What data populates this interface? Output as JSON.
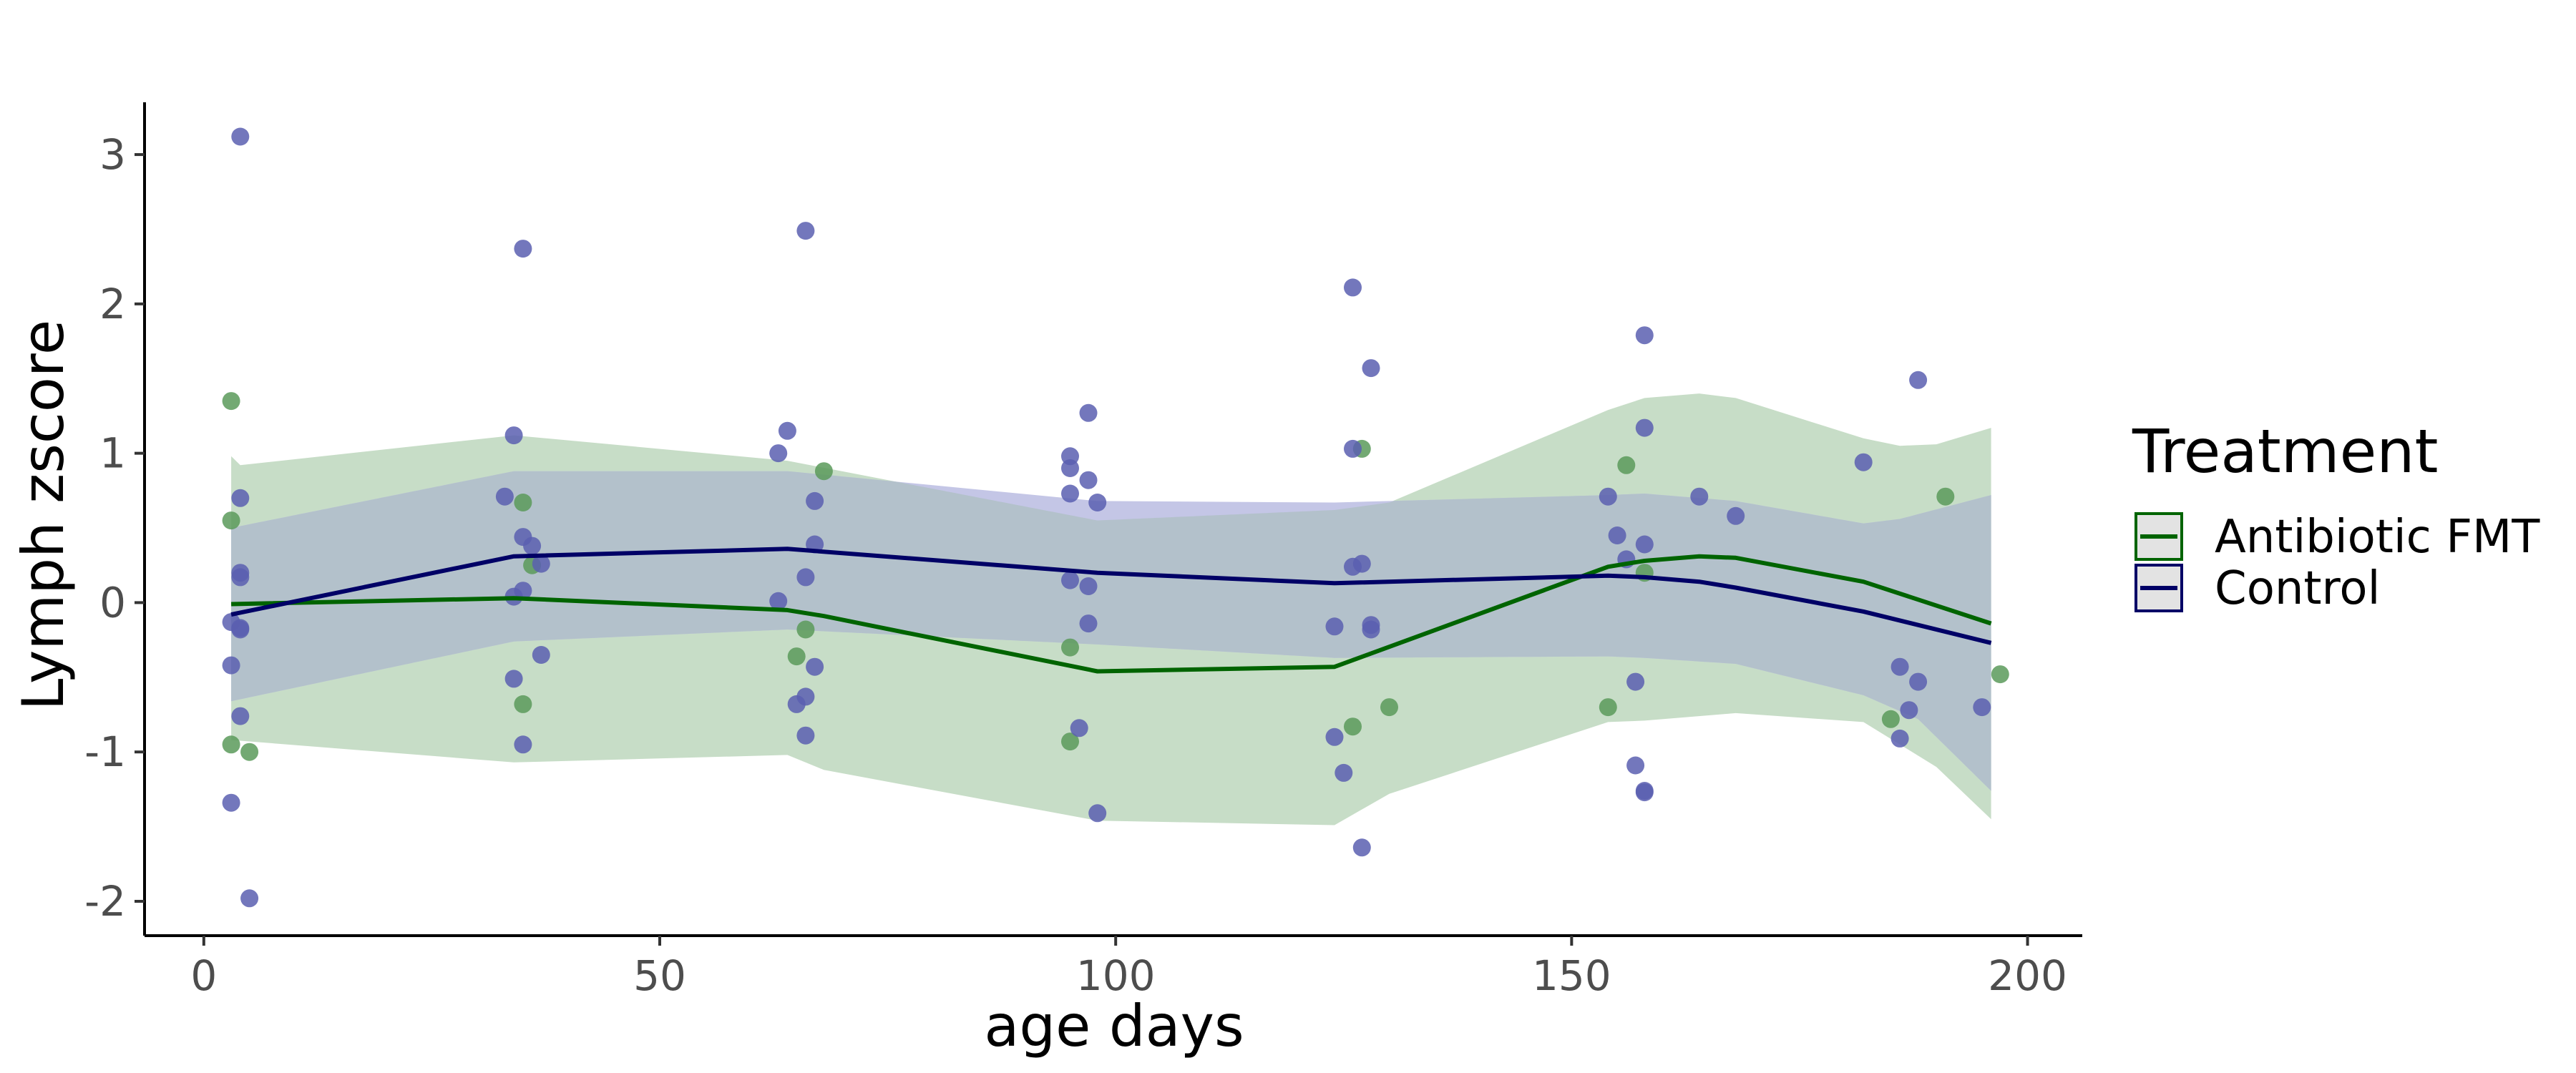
{
  "chart_data": {
    "type": "scatter",
    "title": "",
    "xlabel": "age days",
    "ylabel": "Lymph zscore",
    "xlim": [
      -6.5,
      206
    ],
    "ylim": [
      -2.23,
      3.35
    ],
    "x_ticks": [
      0,
      50,
      100,
      150,
      200
    ],
    "x_tick_labels": [
      "0",
      "50",
      "100",
      "150",
      "200"
    ],
    "y_ticks": [
      -2,
      -1,
      0,
      1,
      2,
      3
    ],
    "y_tick_labels": [
      "-2",
      "-1",
      "0",
      "1",
      "2",
      "3"
    ],
    "grid": false,
    "legend": {
      "title": "Treatment",
      "placement": "right",
      "entries": [
        "Antibiotic FMT",
        "Control"
      ]
    },
    "series": [
      {
        "name": "Antibiotic FMT",
        "color": "#006400",
        "point_color": "#5a9a5a",
        "points": [
          [
            3,
            1.35
          ],
          [
            3,
            0.55
          ],
          [
            3,
            -0.95
          ],
          [
            5,
            -1.0
          ],
          [
            35,
            0.67
          ],
          [
            36,
            0.25
          ],
          [
            35,
            -0.68
          ],
          [
            65,
            -0.36
          ],
          [
            66,
            -0.18
          ],
          [
            68,
            0.88
          ],
          [
            95,
            -0.3
          ],
          [
            95,
            -0.93
          ],
          [
            127,
            1.03
          ],
          [
            126,
            -0.83
          ],
          [
            130,
            -0.7
          ],
          [
            154,
            -0.7
          ],
          [
            156,
            0.92
          ],
          [
            158,
            0.2
          ],
          [
            185,
            -0.78
          ],
          [
            191,
            0.71
          ],
          [
            197,
            -0.48
          ]
        ],
        "line": [
          [
            3,
            -0.01
          ],
          [
            34,
            0.03
          ],
          [
            64,
            -0.05
          ],
          [
            68,
            -0.09
          ],
          [
            98,
            -0.46
          ],
          [
            124,
            -0.43
          ],
          [
            154,
            0.24
          ],
          [
            158,
            0.28
          ],
          [
            164,
            0.31
          ],
          [
            168,
            0.3
          ],
          [
            182,
            0.14
          ],
          [
            196,
            -0.14
          ]
        ],
        "band_upper": [
          [
            3,
            0.98
          ],
          [
            4,
            0.92
          ],
          [
            34,
            1.12
          ],
          [
            64,
            0.95
          ],
          [
            98,
            0.55
          ],
          [
            124,
            0.62
          ],
          [
            130,
            0.67
          ],
          [
            154,
            1.29
          ],
          [
            158,
            1.37
          ],
          [
            164,
            1.4
          ],
          [
            168,
            1.37
          ],
          [
            182,
            1.1
          ],
          [
            186,
            1.05
          ],
          [
            190,
            1.06
          ],
          [
            196,
            1.17
          ]
        ],
        "band_lower": [
          [
            3,
            -0.92
          ],
          [
            34,
            -1.07
          ],
          [
            64,
            -1.02
          ],
          [
            68,
            -1.12
          ],
          [
            98,
            -1.46
          ],
          [
            124,
            -1.49
          ],
          [
            130,
            -1.28
          ],
          [
            154,
            -0.8
          ],
          [
            158,
            -0.79
          ],
          [
            168,
            -0.74
          ],
          [
            182,
            -0.8
          ],
          [
            190,
            -1.1
          ],
          [
            196,
            -1.45
          ]
        ]
      },
      {
        "name": "Control",
        "color": "#000066",
        "point_color": "#5b5fb0",
        "points": [
          [
            4,
            3.12
          ],
          [
            4,
            0.7
          ],
          [
            4,
            0.2
          ],
          [
            4,
            0.17
          ],
          [
            3,
            -0.13
          ],
          [
            4,
            -0.17
          ],
          [
            4,
            -0.18
          ],
          [
            3,
            -0.42
          ],
          [
            4,
            -0.76
          ],
          [
            3,
            -1.34
          ],
          [
            5,
            -1.98
          ],
          [
            35,
            2.37
          ],
          [
            34,
            1.12
          ],
          [
            33,
            0.71
          ],
          [
            35,
            0.44
          ],
          [
            36,
            0.38
          ],
          [
            37,
            0.26
          ],
          [
            35,
            0.08
          ],
          [
            34,
            0.04
          ],
          [
            37,
            -0.35
          ],
          [
            34,
            -0.51
          ],
          [
            35,
            -0.95
          ],
          [
            66,
            2.49
          ],
          [
            64,
            1.15
          ],
          [
            63,
            1.0
          ],
          [
            67,
            0.68
          ],
          [
            67,
            0.39
          ],
          [
            66,
            0.17
          ],
          [
            63,
            0.01
          ],
          [
            67,
            -0.43
          ],
          [
            66,
            -0.63
          ],
          [
            65,
            -0.68
          ],
          [
            66,
            -0.89
          ],
          [
            97,
            1.27
          ],
          [
            95,
            0.98
          ],
          [
            95,
            0.9
          ],
          [
            97,
            0.82
          ],
          [
            98,
            0.67
          ],
          [
            95,
            0.73
          ],
          [
            95,
            0.15
          ],
          [
            97,
            0.11
          ],
          [
            97,
            -0.14
          ],
          [
            96,
            -0.84
          ],
          [
            98,
            -1.41
          ],
          [
            126,
            2.11
          ],
          [
            128,
            1.57
          ],
          [
            126,
            1.03
          ],
          [
            127,
            0.26
          ],
          [
            126,
            0.24
          ],
          [
            124,
            -0.16
          ],
          [
            128,
            -0.15
          ],
          [
            128,
            -0.18
          ],
          [
            124,
            -0.9
          ],
          [
            125,
            -1.14
          ],
          [
            127,
            -1.64
          ],
          [
            158,
            1.79
          ],
          [
            158,
            1.17
          ],
          [
            154,
            0.71
          ],
          [
            155,
            0.45
          ],
          [
            158,
            0.39
          ],
          [
            156,
            0.29
          ],
          [
            157,
            -0.53
          ],
          [
            157,
            -1.09
          ],
          [
            158,
            -1.26
          ],
          [
            158,
            -1.27
          ],
          [
            164,
            0.71
          ],
          [
            168,
            0.58
          ],
          [
            182,
            0.94
          ],
          [
            188,
            1.49
          ],
          [
            186,
            -0.43
          ],
          [
            188,
            -0.53
          ],
          [
            187,
            -0.72
          ],
          [
            186,
            -0.91
          ],
          [
            195,
            -0.7
          ]
        ],
        "line": [
          [
            3,
            -0.08
          ],
          [
            34,
            0.31
          ],
          [
            64,
            0.36
          ],
          [
            98,
            0.2
          ],
          [
            124,
            0.13
          ],
          [
            154,
            0.18
          ],
          [
            158,
            0.17
          ],
          [
            164,
            0.14
          ],
          [
            168,
            0.1
          ],
          [
            182,
            -0.06
          ],
          [
            196,
            -0.27
          ]
        ],
        "band_upper": [
          [
            3,
            0.5
          ],
          [
            34,
            0.88
          ],
          [
            64,
            0.88
          ],
          [
            98,
            0.68
          ],
          [
            124,
            0.67
          ],
          [
            154,
            0.72
          ],
          [
            158,
            0.73
          ],
          [
            168,
            0.68
          ],
          [
            182,
            0.53
          ],
          [
            186,
            0.56
          ],
          [
            196,
            0.72
          ]
        ],
        "band_lower": [
          [
            3,
            -0.66
          ],
          [
            34,
            -0.26
          ],
          [
            64,
            -0.18
          ],
          [
            98,
            -0.28
          ],
          [
            124,
            -0.37
          ],
          [
            154,
            -0.36
          ],
          [
            158,
            -0.37
          ],
          [
            168,
            -0.41
          ],
          [
            182,
            -0.62
          ],
          [
            188,
            -0.78
          ],
          [
            196,
            -1.26
          ]
        ]
      }
    ],
    "colors": {
      "fmt_band": "#c7ddc7",
      "control_band": "#c4c6e6",
      "overlap_band": "#b3c1cb",
      "axis": "#000000",
      "legend_key_fill": "#e3e3e3"
    }
  }
}
